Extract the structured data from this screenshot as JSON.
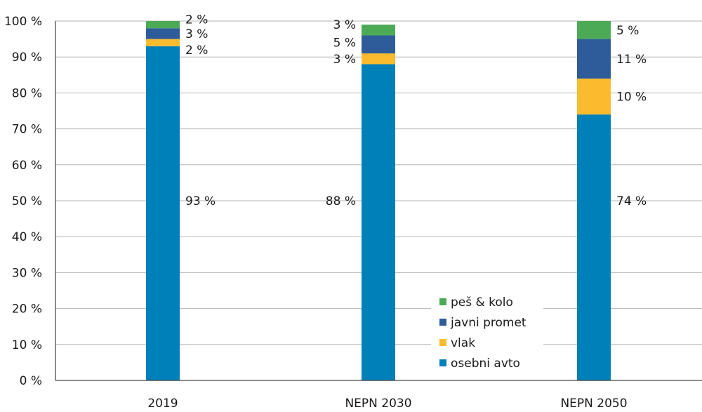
{
  "chart_data": {
    "type": "bar",
    "stacked": true,
    "categories": [
      "2019",
      "NEPN 2030",
      "NEPN 2050"
    ],
    "series": [
      {
        "name": "osebni avto",
        "color": "#0080b8",
        "values": [
          93,
          88,
          74
        ],
        "labels": [
          "93 %",
          "88 %",
          "74 %"
        ]
      },
      {
        "name": "vlak",
        "color": "#fbbb2e",
        "values": [
          2,
          3,
          10
        ],
        "labels": [
          "2 %",
          "3 %",
          "10 %"
        ]
      },
      {
        "name": "javni promet",
        "color": "#2e5b9a",
        "values": [
          3,
          5,
          11
        ],
        "labels": [
          "3 %",
          "5 %",
          "11 %"
        ]
      },
      {
        "name": "peš & kolo",
        "color": "#4caa57",
        "values": [
          2,
          3,
          5
        ],
        "labels": [
          "2 %",
          "3 %",
          "5 %"
        ]
      }
    ],
    "legend_order": [
      "peš & kolo",
      "javni promet",
      "vlak",
      "osebni avto"
    ],
    "y_ticks": [
      "0 %",
      "10 %",
      "20 %",
      "30 %",
      "40 %",
      "50 %",
      "60 %",
      "70 %",
      "80 %",
      "90 %",
      "100 %"
    ],
    "ylim": [
      0,
      100
    ],
    "grid": true,
    "legend_position": "bottom-right inside plot"
  }
}
